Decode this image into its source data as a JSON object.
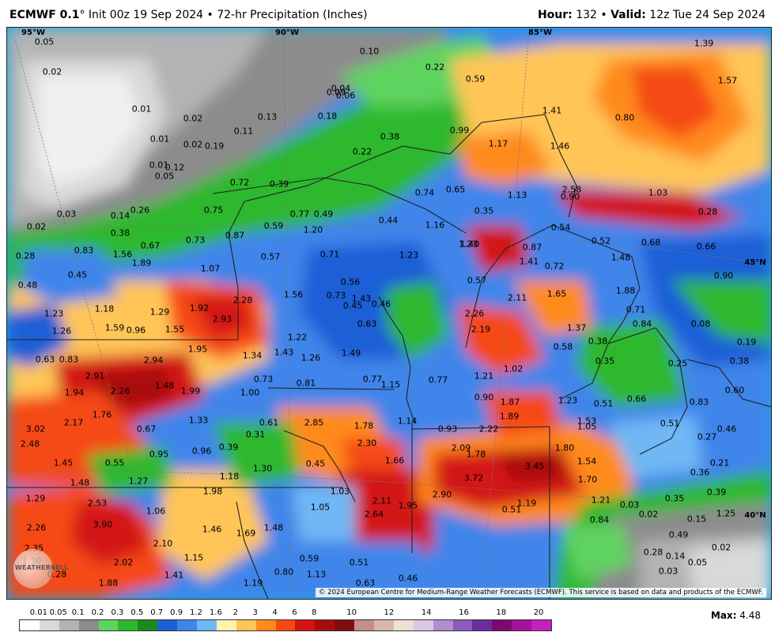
{
  "header": {
    "model": "ECMWF 0.1",
    "init_text": "° Init 00z 19 Sep 2024 • 72-hr Precipitation (Inches)",
    "hour_label": "Hour:",
    "hour_value": " 132 • ",
    "valid_label": "Valid:",
    "valid_value": " 12z Tue 24 Sep 2024"
  },
  "colors": {
    "legend": [
      "#ffffff",
      "#d9d9d9",
      "#b3b3b3",
      "#8c8c8c",
      "#5fd35f",
      "#2eb82e",
      "#1a8a1a",
      "#1d5fd6",
      "#3f85ea",
      "#6fb7f5",
      "#fff3b0",
      "#ffc557",
      "#ff8a1c",
      "#f54a14",
      "#d31212",
      "#a80b0b",
      "#7e0d0d",
      "#c48e8e",
      "#d9b8a8",
      "#f0dfd6",
      "#dcc6e6",
      "#b08ed1",
      "#8c5cb8",
      "#6a2e9b",
      "#7b0a6f",
      "#a3149a",
      "#c81ec0"
    ]
  },
  "legend": {
    "ticks": [
      "0.01",
      "0.05",
      "0.1",
      "0.2",
      "0.3",
      "0.5",
      "0.7",
      "0.9",
      "1.2",
      "1.6",
      "2",
      "3",
      "4",
      "6",
      "8",
      "10",
      "12",
      "14",
      "16",
      "18",
      "20"
    ]
  },
  "max": {
    "label": "Max:",
    "value": " 4.48"
  },
  "grid_labels": [
    "95°W",
    "90°W",
    "85°W",
    "45°N",
    "40°N"
  ],
  "copyright": "© 2024 European Centre for Medium-Range Weather Forecasts (ECMWF). This service is based on data and products of the ECMWF.",
  "logo_text": "WEATHERBELL",
  "values": [
    "0.05",
    "0.02",
    "0.01",
    "0.02",
    "0.01",
    "0.02",
    "0.01",
    "0.03",
    "0.02",
    "0.14",
    "0.26",
    "0.38",
    "0.28",
    "0.48",
    "0.45",
    "0.83",
    "1.56",
    "1.89",
    "0.67",
    "0.73",
    "0.87",
    "0.75",
    "0.59",
    "0.57",
    "1.07",
    "0.77",
    "0.49",
    "1.20",
    "0.71",
    "0.56",
    "1.56",
    "0.73",
    "1.43",
    "0.45",
    "0.46",
    "0.63",
    "1.23",
    "1.26",
    "1.18",
    "0.96",
    "1.59",
    "1.29",
    "1.55",
    "1.92",
    "2.28",
    "2.93",
    "1.95",
    "1.34",
    "1.43",
    "1.22",
    "1.26",
    "1.49",
    "0.63",
    "0.83",
    "2.91",
    "2.94",
    "1.94",
    "2.26",
    "1.48",
    "1.99",
    "0.73",
    "0.81",
    "0.77",
    "1.15",
    "0.77",
    "1.00",
    "3.02",
    "2.17",
    "1.76",
    "1.33",
    "0.67",
    "0.61",
    "2.85",
    "1.78",
    "2.48",
    "0.31",
    "0.39",
    "0.96",
    "0.95",
    "0.55",
    "1.45",
    "1.27",
    "1.48",
    "1.30",
    "1.18",
    "0.45",
    "2.30",
    "1.66",
    "1.14",
    "0.93",
    "1.29",
    "2.53",
    "1.98",
    "1.06",
    "3.90",
    "2.26",
    "1.46",
    "1.69",
    "1.48",
    "1.05",
    "1.03",
    "2.11",
    "2.64",
    "1.95",
    "2.90",
    "2.35",
    "2.10",
    "1.30",
    "2.02",
    "1.15",
    "0.28",
    "1.41",
    "1.88",
    "0.80",
    "1.13",
    "0.59",
    "0.51",
    "0.63",
    "0.46",
    "1.19",
    "0.10",
    "0.22",
    "0.59",
    "0.09",
    "0.06",
    "0.04",
    "0.13",
    "0.18",
    "0.11",
    "0.19",
    "0.12",
    "0.05",
    "0.72",
    "0.39",
    "0.22",
    "0.38",
    "0.99",
    "1.17",
    "1.41",
    "1.46",
    "1.23",
    "1.39",
    "1.57",
    "0.80",
    "0.74",
    "0.65",
    "1.13",
    "0.90",
    "2.58",
    "1.03",
    "0.28",
    "0.44",
    "1.16",
    "0.35",
    "1.23",
    "1.40",
    "0.87",
    "0.54",
    "0.52",
    "0.68",
    "0.66",
    "1.48",
    "1.41",
    "0.72",
    "0.57",
    "0.90",
    "1.88",
    "2.26",
    "2.19",
    "2.11",
    "1.65",
    "1.37",
    "0.71",
    "0.84",
    "0.58",
    "0.38",
    "0.35",
    "0.08",
    "0.19",
    "0.38",
    "0.25",
    "1.21",
    "1.02",
    "0.90",
    "1.87",
    "1.89",
    "1.23",
    "0.51",
    "0.60",
    "0.66",
    "0.83",
    "0.51",
    "2.22",
    "1.53",
    "1.05",
    "0.46",
    "0.27",
    "2.09",
    "1.78",
    "1.80",
    "1.54",
    "0.21",
    "0.36",
    "3.72",
    "3.45",
    "1.70",
    "1.21",
    "0.35",
    "0.39",
    "1.25",
    "1.19",
    "0.51",
    "0.03",
    "0.02",
    "0.15",
    "0.84",
    "0.28",
    "0.49",
    "0.14",
    "0.05",
    "0.03",
    "0.02",
    "0.16"
  ]
}
